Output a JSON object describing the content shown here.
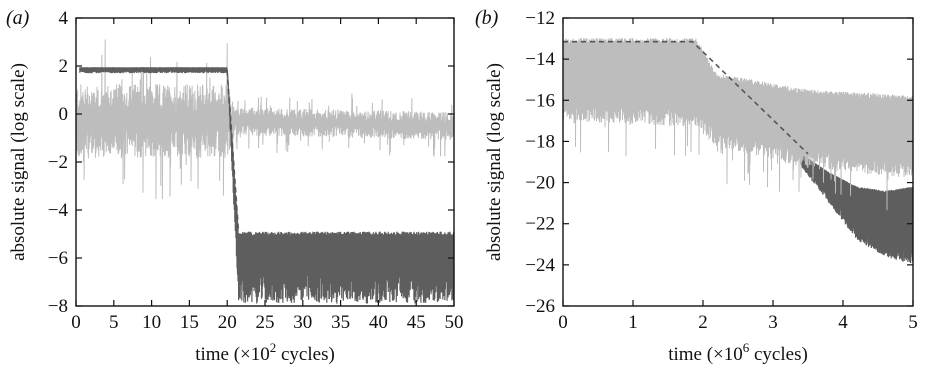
{
  "chart_data": [
    {
      "type": "line",
      "panel_label": "(a)",
      "xlabel": "time (×10² cycles)",
      "xlabel_parts": {
        "pre": "time (×10",
        "sup": "2",
        "post": " cycles)"
      },
      "ylabel": "absolute signal (log scale)",
      "xlim": [
        0,
        50
      ],
      "ylim": [
        -8,
        4
      ],
      "xticks": [
        0,
        5,
        10,
        15,
        20,
        25,
        30,
        35,
        40,
        45,
        50
      ],
      "yticks": [
        4,
        2,
        0,
        -2,
        -4,
        -6,
        -8
      ],
      "grid": false,
      "series": [
        {
          "color": "#bdbdbd",
          "style": "noisy",
          "x": [
            0,
            20,
            21,
            50
          ],
          "y": [
            -0.3,
            -0.3,
            -0.3,
            -0.5
          ],
          "spread": [
            1.2,
            1.2,
            0.45,
            0.45
          ]
        },
        {
          "color": "#5e5e5e",
          "style": "band",
          "x": [
            0.5,
            20,
            21.5,
            50
          ],
          "y_top": [
            1.95,
            1.95,
            -4.9,
            -4.9
          ],
          "y_bottom": [
            1.7,
            1.7,
            -7.9,
            -7.9
          ]
        },
        {
          "color": "#555555",
          "style": "dashed",
          "x": [
            20,
            21.5
          ],
          "y": [
            1.8,
            -4.9
          ]
        }
      ]
    },
    {
      "type": "line",
      "panel_label": "(b)",
      "xlabel": "time (×10⁶ cycles)",
      "xlabel_parts": {
        "pre": "time (×10",
        "sup": "6",
        "post": " cycles)"
      },
      "ylabel": "absolute signal (log scale)",
      "xlim": [
        0,
        5
      ],
      "ylim": [
        -26,
        -12
      ],
      "xticks": [
        0,
        1,
        2,
        3,
        4,
        5
      ],
      "yticks": [
        -12,
        -14,
        -16,
        -18,
        -20,
        -22,
        -24,
        -26
      ],
      "grid": false,
      "series": [
        {
          "color": "#5e5e5e",
          "style": "band",
          "x": [
            3.4,
            3.8,
            4.2,
            4.6,
            5.0
          ],
          "y_top": [
            -18.6,
            -19.5,
            -20.2,
            -20.4,
            -20.2
          ],
          "y_bottom": [
            -19.2,
            -21.0,
            -22.8,
            -23.6,
            -24.0
          ]
        },
        {
          "color": "#bdbdbd",
          "style": "noisy_down",
          "x": [
            0,
            1.9,
            2.2,
            3.5,
            5.0
          ],
          "y_top": [
            -13.1,
            -13.1,
            -14.8,
            -15.6,
            -15.9
          ],
          "y_bottom": [
            -16.2,
            -16.5,
            -17.5,
            -18.5,
            -19.0
          ]
        },
        {
          "color": "#555555",
          "style": "dashed",
          "x": [
            0,
            1.85,
            3.5
          ],
          "y": [
            -13.15,
            -13.15,
            -18.6
          ]
        }
      ]
    }
  ]
}
